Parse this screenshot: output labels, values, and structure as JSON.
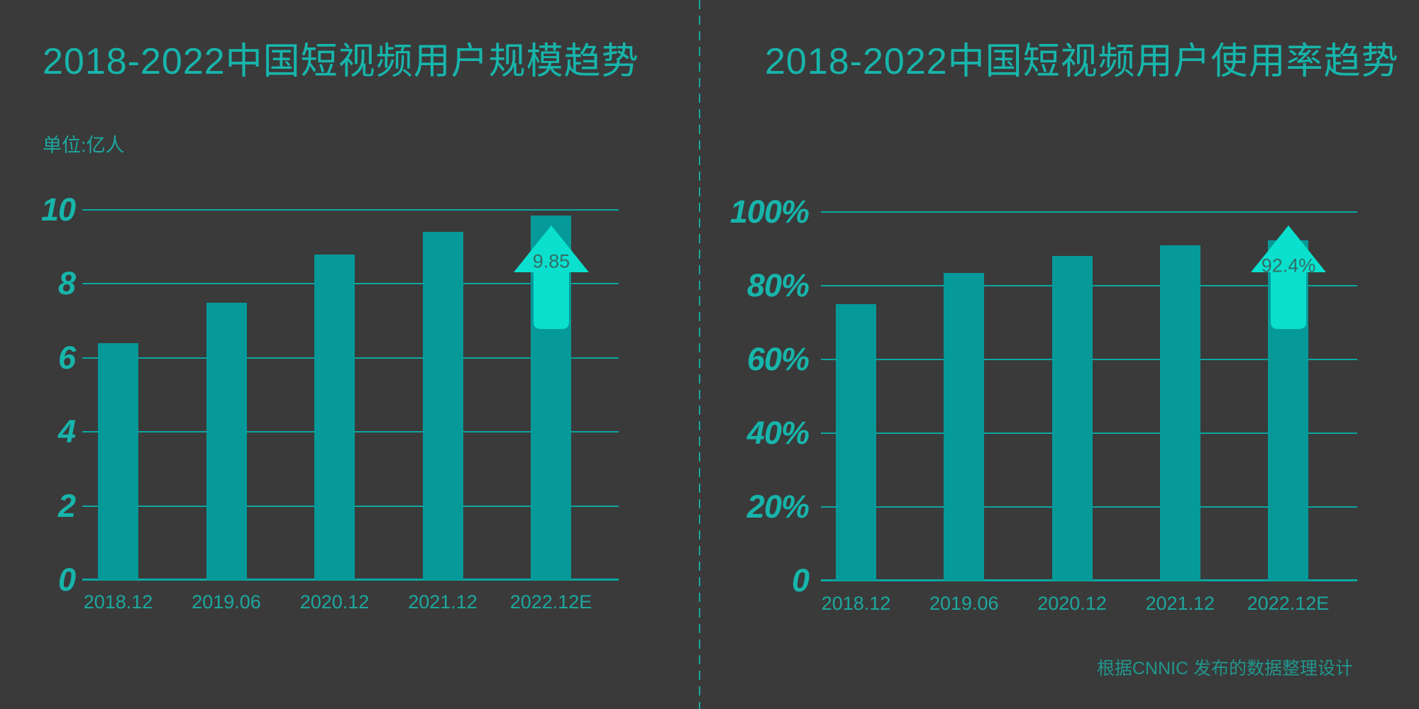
{
  "page": {
    "credit": "根据CNNIC 发布的数据整理设计"
  },
  "colors": {
    "background": "#3a3a3a",
    "bar": "#059a99",
    "grid": "#0ba7a1",
    "accent": "#17b5ab",
    "tick": "#1da79e",
    "arrow": "#0ae0cd",
    "arrow_text": "#336e68",
    "divider": "#19a59c",
    "credit": "#21968d"
  },
  "chart_data": [
    {
      "type": "bar",
      "title": "2018-2022中国短视频用户规模趋势",
      "unit": "单位:亿人",
      "categories": [
        "2018.12",
        "2019.06",
        "2020.12",
        "2021.12",
        "2022.12E"
      ],
      "values": [
        6.4,
        7.5,
        8.8,
        9.4,
        9.85
      ],
      "ylim": [
        0,
        10
      ],
      "yticks": [
        0,
        2,
        4,
        6,
        8,
        10
      ],
      "ytick_labels": [
        "0",
        "2",
        "4",
        "6",
        "8",
        "10"
      ],
      "grid": true,
      "legend": false,
      "highlight": {
        "index": 4,
        "label": "9.85",
        "shape": "up-arrow"
      }
    },
    {
      "type": "bar",
      "title": "2018-2022中国短视频用户使用率趋势",
      "unit": "",
      "categories": [
        "2018.12",
        "2019.06",
        "2020.12",
        "2021.12",
        "2022.12E"
      ],
      "values": [
        75,
        83.5,
        88,
        91,
        92.4
      ],
      "ylim": [
        0,
        100
      ],
      "yticks": [
        0,
        20,
        40,
        60,
        80,
        100
      ],
      "ytick_labels": [
        "0",
        "20%",
        "40%",
        "60%",
        "80%",
        "100%"
      ],
      "grid": true,
      "legend": false,
      "highlight": {
        "index": 4,
        "label": "92.4%",
        "shape": "up-arrow"
      }
    }
  ]
}
